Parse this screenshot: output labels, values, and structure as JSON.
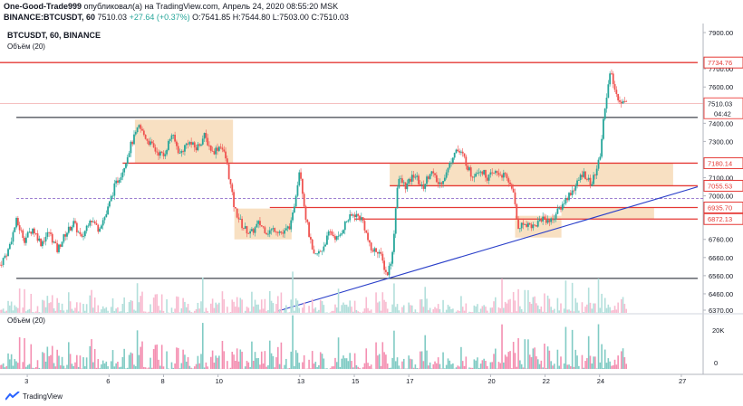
{
  "header": {
    "author": "One-Good-Trade999",
    "published": "опубликовал(а) на TradingView.com, Апрель 24, 2020 08:55:20 MSK",
    "symbol_line": "BINANCE:BTCUSDT, 60",
    "last": "7510.03",
    "change": "+27.64 (+0.37%)",
    "o": "O:7541.85",
    "h": "H:7544.80",
    "l": "L:7503.00",
    "c": "C:7510.03"
  },
  "legend": {
    "title": "BTCUSDT, 60, BINANCE",
    "volume": "Объём (20)",
    "volume_pane": "Объём (20)"
  },
  "footer": {
    "brand": "TradingView"
  },
  "colors": {
    "up": "#26a69a",
    "down": "#ef5350",
    "level": "#e53935",
    "zone": "#f6d5ad",
    "trend": "#2a3fc9",
    "support": "#131722"
  },
  "chart_data": {
    "type": "candlestick",
    "symbol": "BTCUSDT",
    "timeframe": "60",
    "exchange": "BINANCE",
    "x_ticks": [
      "3",
      "6",
      "8",
      "10",
      "13",
      "15",
      "17",
      "20",
      "22",
      "24",
      "27"
    ],
    "x_tick_pos": [
      1,
      4,
      6,
      8,
      11,
      13,
      15,
      18,
      20,
      22,
      25
    ],
    "x_range": [
      0.0,
      25.8
    ],
    "y_ticks": [
      "7900.00",
      "7700.00",
      "7600.00",
      "7400.00",
      "7300.00",
      "7200.00",
      "7100.00",
      "7000.00",
      "6900.00",
      "6760.00",
      "6660.00",
      "6560.00",
      "6460.00",
      "6370.00"
    ],
    "y_tick_vals": [
      7900,
      7700,
      7600,
      7400,
      7300,
      7200,
      7100,
      7000,
      6900,
      6760,
      6660,
      6560,
      6460,
      6370
    ],
    "y_range": [
      6355,
      7950
    ],
    "price_levels": [
      {
        "label": "7734.76",
        "value": 7734.76,
        "color": "#e53935"
      },
      {
        "label": "7180.14",
        "value": 7180.14,
        "color": "#e53935"
      },
      {
        "label": "7055.53",
        "value": 7055.53,
        "color": "#e53935"
      },
      {
        "label": "6935.70",
        "value": 6935.7,
        "color": "#e53935"
      },
      {
        "label": "6872.13",
        "value": 6872.13,
        "color": "#e53935"
      }
    ],
    "last_price": {
      "label": "7510.03",
      "value": 7510.03,
      "timer": "04:42"
    },
    "support_lines": [
      {
        "value": 7432,
        "x_from": 0.6,
        "x_to": 25.6
      },
      {
        "value": 6545,
        "x_from": 0.6,
        "x_to": 25.6
      }
    ],
    "dashed_level": {
      "value": 6985
    },
    "trendline": {
      "x0": 10.2,
      "y0": 6365,
      "x1": 25.6,
      "y1": 7050
    },
    "zones": [
      {
        "x0": 4.95,
        "x1": 8.55,
        "y0": 7180,
        "y1": 7420
      },
      {
        "x0": 8.6,
        "x1": 10.7,
        "y0": 6760,
        "y1": 6930
      },
      {
        "x0": 14.3,
        "x1": 24.7,
        "y0": 7055,
        "y1": 7180
      },
      {
        "x0": 18.9,
        "x1": 20.6,
        "y0": 6770,
        "y1": 6890
      },
      {
        "x0": 20.6,
        "x1": 24.0,
        "y0": 6872,
        "y1": 6935
      }
    ],
    "red_lines": [
      {
        "value": 7180.14,
        "x_from": 4.5,
        "x_to": 25.6
      },
      {
        "value": 7055.53,
        "x_from": 14.3,
        "x_to": 25.6
      },
      {
        "value": 6935.7,
        "x_from": 9.9,
        "x_to": 25.6
      },
      {
        "value": 6872.13,
        "x_from": 13.0,
        "x_to": 25.6
      },
      {
        "value": 7734.76,
        "x_from": 0.0,
        "x_to": 25.6
      }
    ],
    "path": [
      [
        0.0,
        6620
      ],
      [
        0.3,
        6700
      ],
      [
        0.6,
        6860
      ],
      [
        0.9,
        6760
      ],
      [
        1.2,
        6820
      ],
      [
        1.5,
        6740
      ],
      [
        1.8,
        6800
      ],
      [
        2.1,
        6700
      ],
      [
        2.4,
        6790
      ],
      [
        2.7,
        6850
      ],
      [
        3.0,
        6760
      ],
      [
        3.3,
        6880
      ],
      [
        3.6,
        6820
      ],
      [
        3.9,
        6900
      ],
      [
        4.2,
        7050
      ],
      [
        4.5,
        7140
      ],
      [
        4.8,
        7280
      ],
      [
        5.1,
        7380
      ],
      [
        5.4,
        7310
      ],
      [
        5.7,
        7250
      ],
      [
        6.0,
        7220
      ],
      [
        6.3,
        7340
      ],
      [
        6.6,
        7230
      ],
      [
        6.9,
        7300
      ],
      [
        7.2,
        7260
      ],
      [
        7.5,
        7330
      ],
      [
        7.8,
        7240
      ],
      [
        8.1,
        7280
      ],
      [
        8.3,
        7200
      ],
      [
        8.6,
        6930
      ],
      [
        8.9,
        6830
      ],
      [
        9.2,
        6790
      ],
      [
        9.5,
        6850
      ],
      [
        9.8,
        6800
      ],
      [
        10.1,
        6820
      ],
      [
        10.4,
        6790
      ],
      [
        10.7,
        6850
      ],
      [
        11.0,
        7160
      ],
      [
        11.2,
        6900
      ],
      [
        11.5,
        6660
      ],
      [
        11.8,
        6700
      ],
      [
        12.1,
        6800
      ],
      [
        12.4,
        6760
      ],
      [
        12.7,
        6860
      ],
      [
        13.0,
        6900
      ],
      [
        13.3,
        6870
      ],
      [
        13.6,
        6700
      ],
      [
        13.9,
        6700
      ],
      [
        14.2,
        6560
      ],
      [
        14.4,
        6680
      ],
      [
        14.6,
        7100
      ],
      [
        14.9,
        7050
      ],
      [
        15.2,
        7120
      ],
      [
        15.5,
        7040
      ],
      [
        15.8,
        7140
      ],
      [
        16.1,
        7060
      ],
      [
        16.4,
        7130
      ],
      [
        16.7,
        7260
      ],
      [
        17.0,
        7220
      ],
      [
        17.3,
        7110
      ],
      [
        17.6,
        7150
      ],
      [
        17.9,
        7100
      ],
      [
        18.2,
        7130
      ],
      [
        18.5,
        7110
      ],
      [
        18.8,
        7050
      ],
      [
        19.0,
        6830
      ],
      [
        19.3,
        6850
      ],
      [
        19.6,
        6830
      ],
      [
        19.9,
        6880
      ],
      [
        20.2,
        6860
      ],
      [
        20.5,
        6920
      ],
      [
        20.8,
        6990
      ],
      [
        21.1,
        7050
      ],
      [
        21.4,
        7130
      ],
      [
        21.7,
        7060
      ],
      [
        22.0,
        7200
      ],
      [
        22.2,
        7500
      ],
      [
        22.4,
        7680
      ],
      [
        22.6,
        7560
      ],
      [
        22.8,
        7520
      ],
      [
        23.0,
        7510
      ]
    ]
  }
}
